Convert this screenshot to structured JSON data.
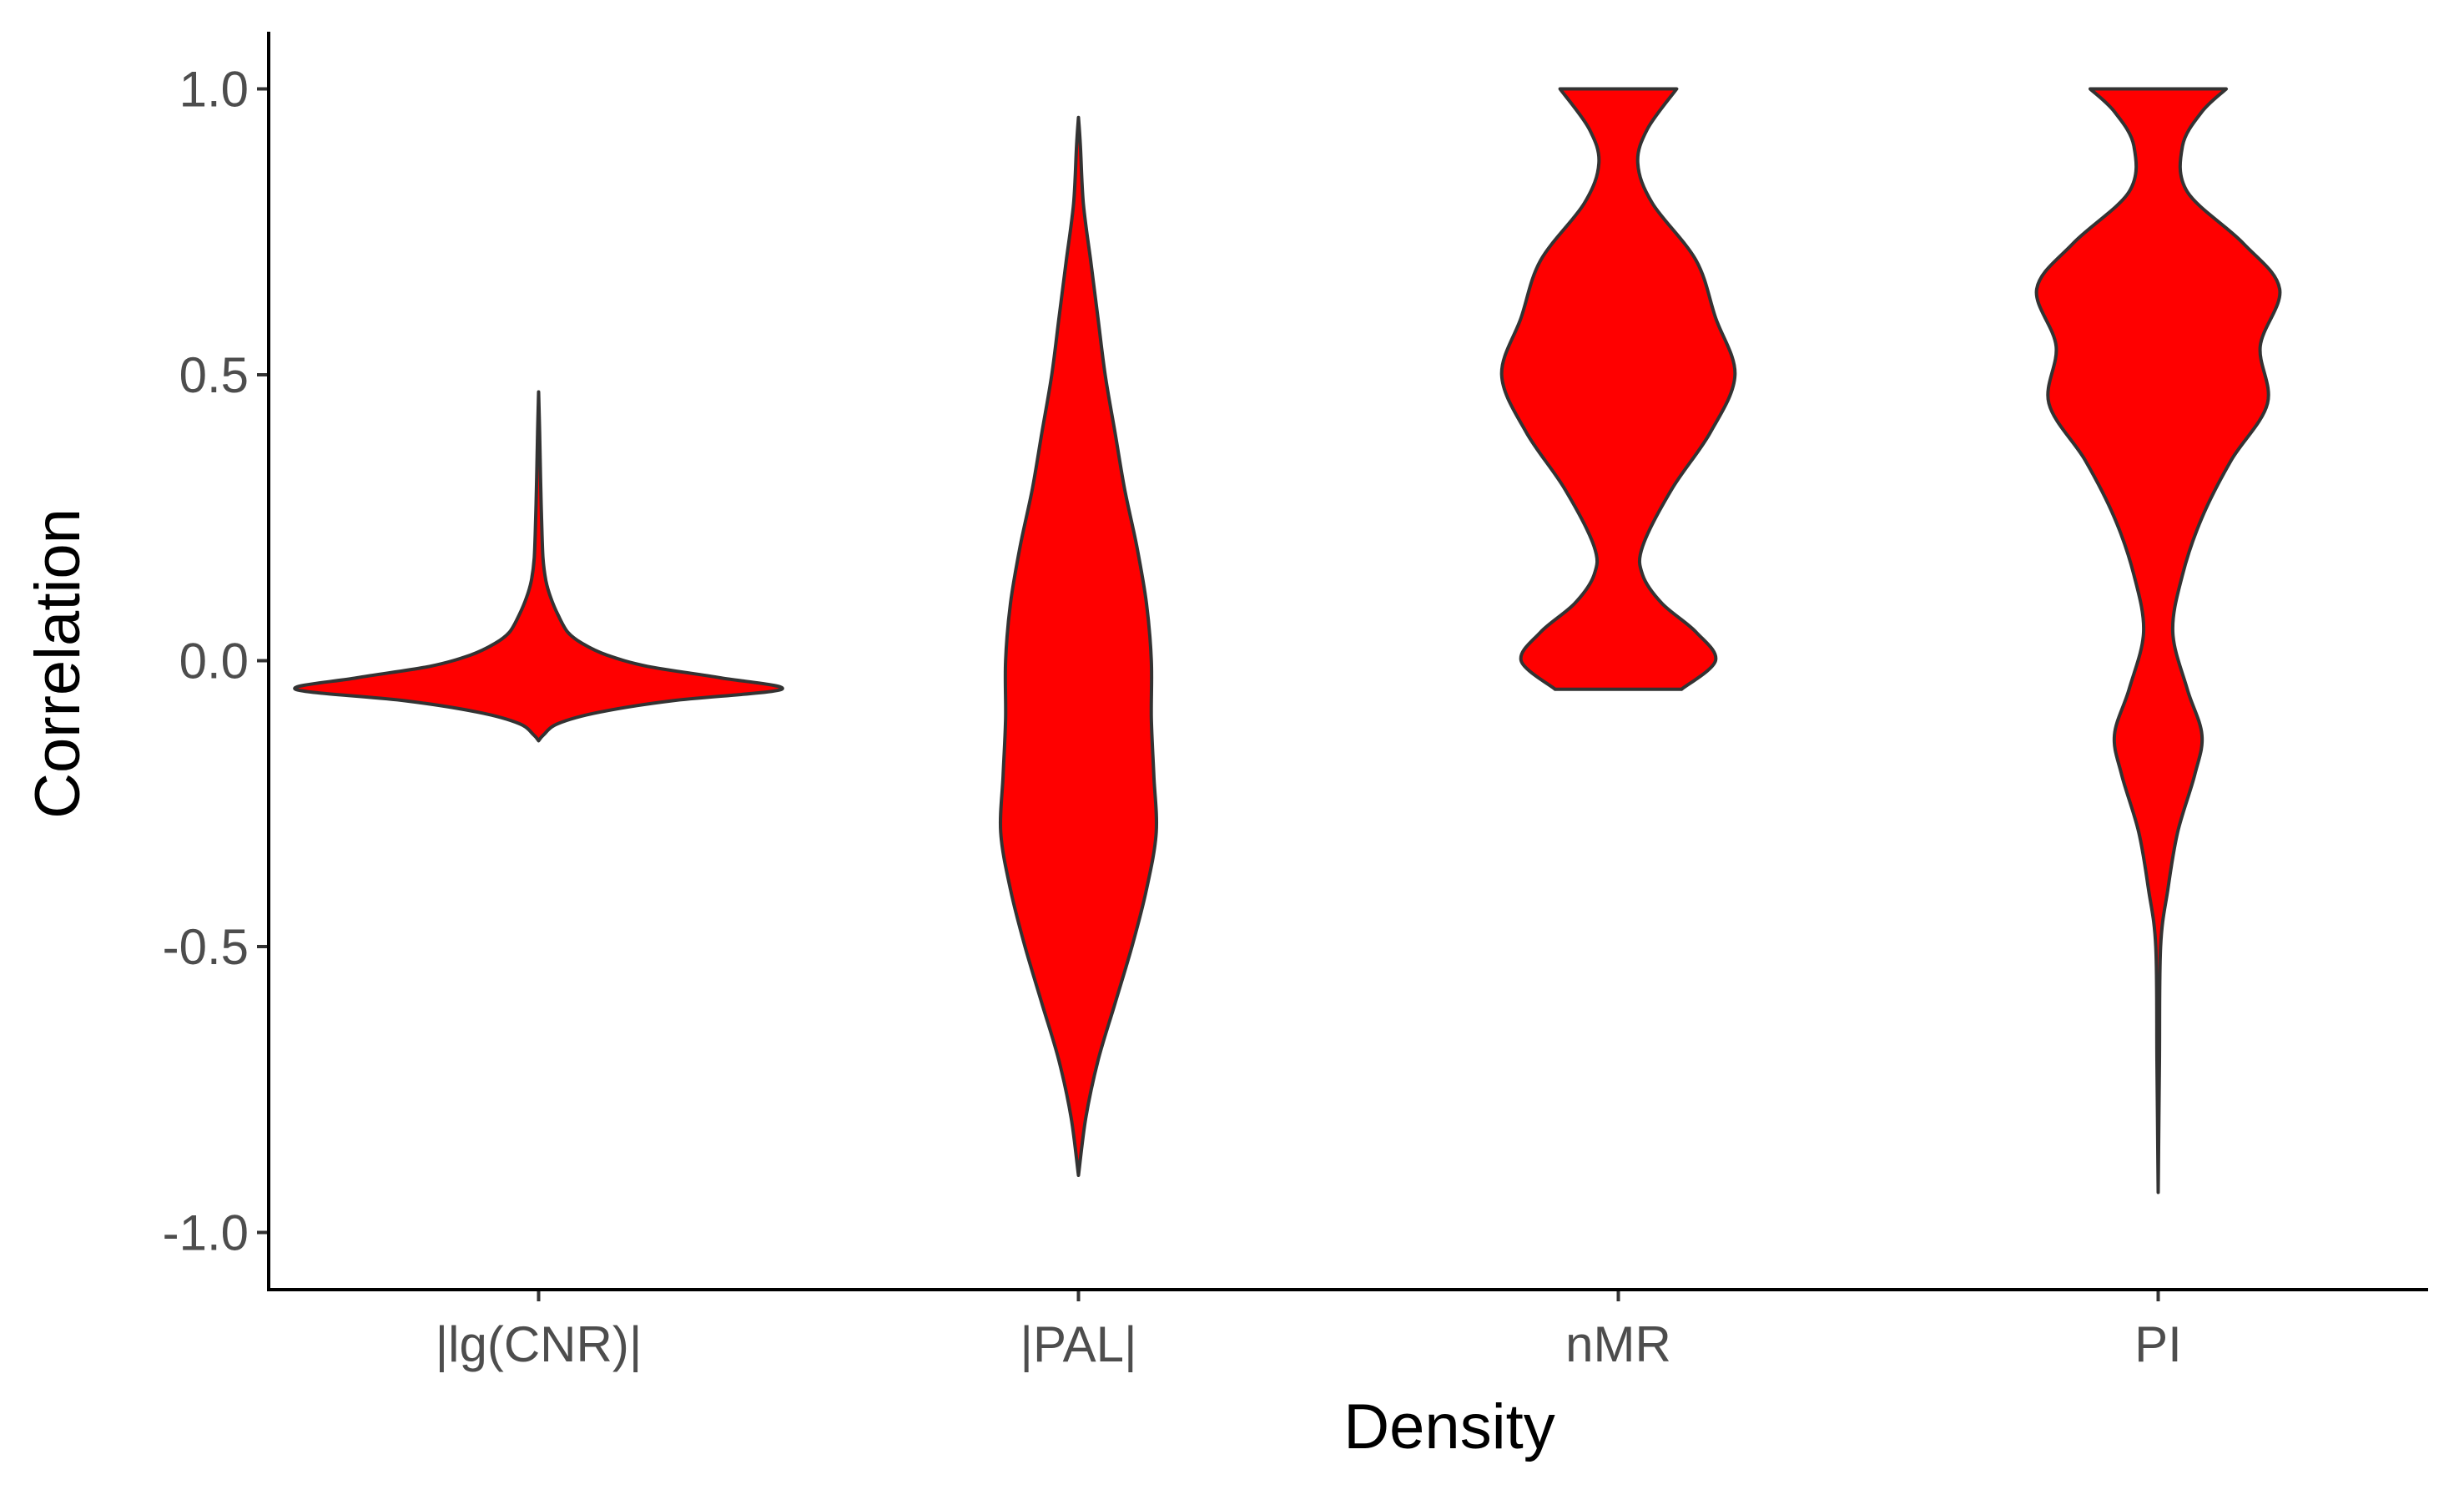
{
  "chart_data": {
    "type": "violin",
    "title": "",
    "xlabel": "Density",
    "ylabel": "Correlation",
    "ylim": [
      -1.1,
      1.1
    ],
    "yticks": [
      -1.0,
      -0.5,
      0.0,
      0.5,
      1.0
    ],
    "ytick_labels": [
      "-1.0",
      "-0.5",
      "0.0",
      "0.5",
      "1.0"
    ],
    "grid": false,
    "legend": "none",
    "fill_color": "#ff0000",
    "outline_color": "#333333",
    "categories": [
      "|lg(CNR)|",
      "|PAL|",
      "nMR",
      "PI"
    ],
    "violins": [
      {
        "category": "|lg(CNR)|",
        "min": -0.14,
        "max": 0.47,
        "density_profile": [
          [
            -0.14,
            0.0
          ],
          [
            -0.13,
            0.02
          ],
          [
            -0.11,
            0.08
          ],
          [
            -0.09,
            0.25
          ],
          [
            -0.07,
            0.55
          ],
          [
            -0.05,
            1.0
          ],
          [
            -0.03,
            0.75
          ],
          [
            -0.01,
            0.45
          ],
          [
            0.01,
            0.28
          ],
          [
            0.03,
            0.18
          ],
          [
            0.05,
            0.12
          ],
          [
            0.08,
            0.08
          ],
          [
            0.11,
            0.05
          ],
          [
            0.14,
            0.03
          ],
          [
            0.18,
            0.018
          ],
          [
            0.25,
            0.012
          ],
          [
            0.32,
            0.008
          ],
          [
            0.4,
            0.004
          ],
          [
            0.47,
            0.0
          ]
        ]
      },
      {
        "category": "|PAL|",
        "min": -0.9,
        "max": 0.95,
        "density_profile": [
          [
            -0.9,
            0.0
          ],
          [
            -0.8,
            0.03
          ],
          [
            -0.7,
            0.08
          ],
          [
            -0.6,
            0.15
          ],
          [
            -0.5,
            0.22
          ],
          [
            -0.4,
            0.28
          ],
          [
            -0.3,
            0.32
          ],
          [
            -0.2,
            0.31
          ],
          [
            -0.1,
            0.3
          ],
          [
            0.0,
            0.3
          ],
          [
            0.1,
            0.28
          ],
          [
            0.2,
            0.24
          ],
          [
            0.3,
            0.19
          ],
          [
            0.4,
            0.15
          ],
          [
            0.5,
            0.11
          ],
          [
            0.6,
            0.08
          ],
          [
            0.7,
            0.05
          ],
          [
            0.8,
            0.02
          ],
          [
            0.9,
            0.008
          ],
          [
            0.95,
            0.0
          ]
        ]
      },
      {
        "category": "nMR",
        "min": -0.05,
        "max": 1.0,
        "density_profile": [
          [
            -0.05,
            0.26
          ],
          [
            0.0,
            0.4
          ],
          [
            0.05,
            0.32
          ],
          [
            0.1,
            0.18
          ],
          [
            0.15,
            0.1
          ],
          [
            0.2,
            0.1
          ],
          [
            0.3,
            0.22
          ],
          [
            0.4,
            0.38
          ],
          [
            0.5,
            0.48
          ],
          [
            0.6,
            0.4
          ],
          [
            0.7,
            0.32
          ],
          [
            0.8,
            0.14
          ],
          [
            0.87,
            0.08
          ],
          [
            0.93,
            0.12
          ],
          [
            1.0,
            0.24
          ]
        ]
      },
      {
        "category": "PI",
        "min": -0.93,
        "max": 1.0,
        "density_profile": [
          [
            -0.93,
            0.0
          ],
          [
            -0.7,
            0.005
          ],
          [
            -0.5,
            0.01
          ],
          [
            -0.4,
            0.04
          ],
          [
            -0.3,
            0.08
          ],
          [
            -0.2,
            0.15
          ],
          [
            -0.13,
            0.18
          ],
          [
            -0.05,
            0.12
          ],
          [
            0.05,
            0.06
          ],
          [
            0.15,
            0.1
          ],
          [
            0.25,
            0.18
          ],
          [
            0.35,
            0.3
          ],
          [
            0.45,
            0.45
          ],
          [
            0.55,
            0.42
          ],
          [
            0.65,
            0.5
          ],
          [
            0.73,
            0.35
          ],
          [
            0.82,
            0.12
          ],
          [
            0.9,
            0.1
          ],
          [
            0.96,
            0.18
          ],
          [
            1.0,
            0.28
          ]
        ]
      }
    ]
  }
}
